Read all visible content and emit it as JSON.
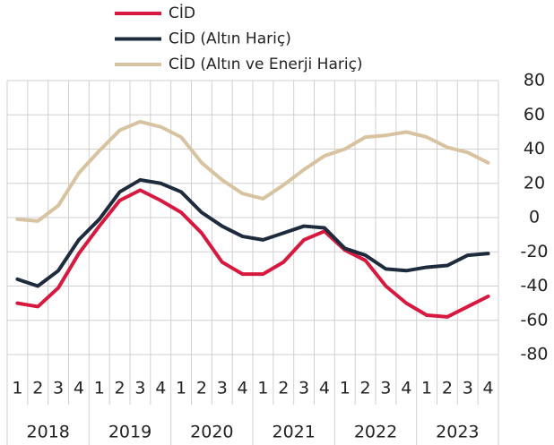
{
  "chart_data": {
    "type": "line",
    "categories": [
      "1",
      "2",
      "3",
      "4",
      "1",
      "2",
      "3",
      "4",
      "1",
      "2",
      "3",
      "4",
      "1",
      "2",
      "3",
      "4",
      "1",
      "2",
      "3",
      "4",
      "1",
      "2",
      "3",
      "4"
    ],
    "category_groups": [
      "2018",
      "2019",
      "2020",
      "2021",
      "2022",
      "2023"
    ],
    "series": [
      {
        "name": "CİD",
        "color": "#d7193f",
        "values": [
          -50,
          -52,
          -41,
          -21,
          -5,
          10,
          16,
          10,
          3,
          -9,
          -26,
          -33,
          -33,
          -26,
          -13,
          -8,
          -19,
          -25,
          -40,
          -50,
          -57,
          -58,
          -52,
          -46
        ]
      },
      {
        "name": "CİD (Altın Hariç)",
        "color": "#1e2b3c",
        "values": [
          -36,
          -40,
          -31,
          -13,
          -1,
          15,
          22,
          20,
          15,
          3,
          -5,
          -11,
          -13,
          -9,
          -5,
          -6,
          -18,
          -22,
          -30,
          -31,
          -29,
          -28,
          -22,
          -21
        ]
      },
      {
        "name": "CİD (Altın ve Enerji Hariç)",
        "color": "#d8c3a0",
        "values": [
          -1,
          -2,
          7,
          26,
          39,
          51,
          56,
          53,
          47,
          32,
          22,
          14,
          11,
          19,
          28,
          36,
          40,
          47,
          48,
          50,
          47,
          41,
          38,
          32
        ]
      }
    ],
    "ylim": [
      -80,
      80
    ],
    "yticks": [
      -80,
      -60,
      -40,
      -20,
      0,
      20,
      40,
      60,
      80
    ],
    "grid": true,
    "legend": "top"
  }
}
